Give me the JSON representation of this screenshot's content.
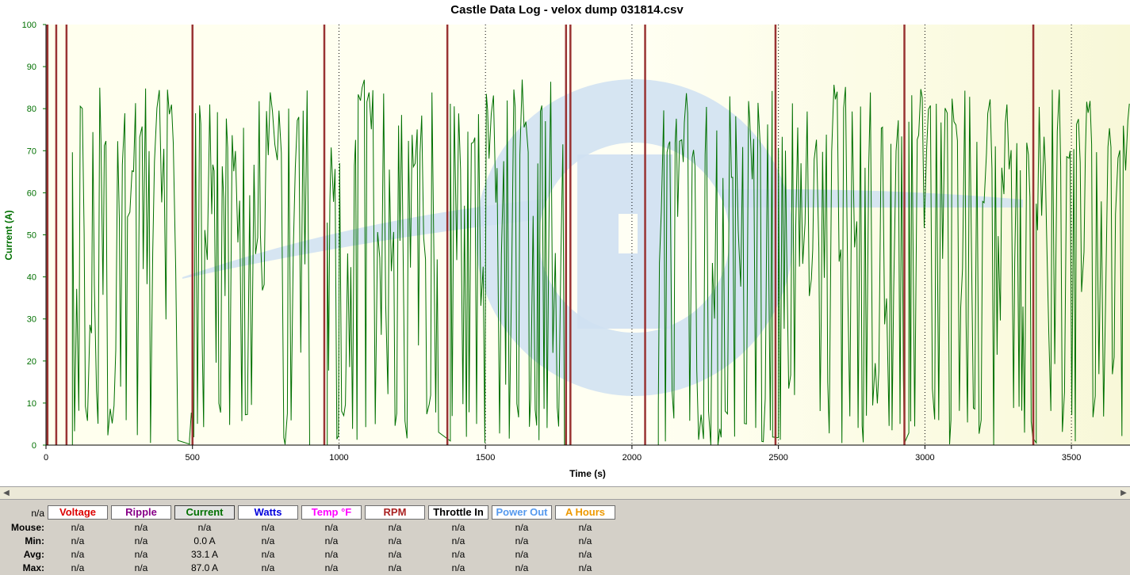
{
  "chart_data": {
    "type": "line",
    "title": "Castle Data Log - velox dump 031814.csv",
    "xlabel": "Time (s)",
    "ylabel": "Current (A)",
    "xlim": [
      0,
      3700
    ],
    "ylim": [
      0,
      100
    ],
    "x_ticks": [
      0,
      500,
      1000,
      1500,
      2000,
      2500,
      3000,
      3500
    ],
    "y_ticks": [
      0,
      10,
      20,
      30,
      40,
      50,
      60,
      70,
      80,
      90,
      100
    ],
    "grid": "vertical dotted at 1000, 1500, 2000, 2500, 3000, 3500",
    "colors": {
      "current": "#007000",
      "markers": "#993333",
      "axis_label": "#007000"
    },
    "marker_lines_x": [
      5,
      35,
      70,
      500,
      950,
      1370,
      1775,
      1790,
      2045,
      2490,
      2930,
      3370
    ],
    "series": [
      {
        "name": "Current",
        "summary": {
          "min": 0.0,
          "avg": 33.1,
          "max": 87.0
        },
        "segments": [
          {
            "start": 0,
            "end": 90,
            "level": 0
          },
          {
            "start": 90,
            "end": 450,
            "level": 80,
            "peak": 87
          },
          {
            "start": 450,
            "end": 490,
            "level": 3
          },
          {
            "start": 490,
            "end": 900,
            "level": 80,
            "peak": 86
          },
          {
            "start": 900,
            "end": 960,
            "level": 0
          },
          {
            "start": 960,
            "end": 1340,
            "level": 80,
            "peak": 87
          },
          {
            "start": 1340,
            "end": 1380,
            "level": 8
          },
          {
            "start": 1380,
            "end": 1770,
            "level": 80,
            "peak": 87
          },
          {
            "start": 1770,
            "end": 2090,
            "level": 0
          },
          {
            "start": 2090,
            "end": 2480,
            "level": 78,
            "peak": 85
          },
          {
            "start": 2480,
            "end": 2500,
            "level": 5
          },
          {
            "start": 2500,
            "end": 2930,
            "level": 80,
            "peak": 86
          },
          {
            "start": 2930,
            "end": 2945,
            "level": 8
          },
          {
            "start": 2945,
            "end": 3370,
            "level": 80,
            "peak": 85
          },
          {
            "start": 3370,
            "end": 3380,
            "level": 5
          },
          {
            "start": 3380,
            "end": 3700,
            "level": 80,
            "peak": 85
          }
        ]
      }
    ]
  },
  "scrollbar": {
    "left_arrow": "◀",
    "right_arrow": "▶"
  },
  "panel": {
    "corner_value": "n/a",
    "buttons": [
      {
        "label": "Voltage",
        "color": "#dd0000"
      },
      {
        "label": "Ripple",
        "color": "#880088"
      },
      {
        "label": "Current",
        "color": "#007000",
        "active": true
      },
      {
        "label": "Watts",
        "color": "#0000dd"
      },
      {
        "label": "Temp °F",
        "color": "#ff00ff"
      },
      {
        "label": "RPM",
        "color": "#aa2222"
      },
      {
        "label": "Throttle In",
        "color": "#000000"
      },
      {
        "label": "Power Out",
        "color": "#5599ee"
      },
      {
        "label": "A Hours",
        "color": "#ee9900"
      }
    ],
    "rows": [
      {
        "label": "Mouse:",
        "values": [
          "n/a",
          "n/a",
          "n/a",
          "n/a",
          "n/a",
          "n/a",
          "n/a",
          "n/a",
          "n/a"
        ]
      },
      {
        "label": "Min:",
        "values": [
          "n/a",
          "n/a",
          "0.0 A",
          "n/a",
          "n/a",
          "n/a",
          "n/a",
          "n/a",
          "n/a"
        ]
      },
      {
        "label": "Avg:",
        "values": [
          "n/a",
          "n/a",
          "33.1 A",
          "n/a",
          "n/a",
          "n/a",
          "n/a",
          "n/a",
          "n/a"
        ]
      },
      {
        "label": "Max:",
        "values": [
          "n/a",
          "n/a",
          "87.0 A",
          "n/a",
          "n/a",
          "n/a",
          "n/a",
          "n/a",
          "n/a"
        ]
      }
    ]
  }
}
